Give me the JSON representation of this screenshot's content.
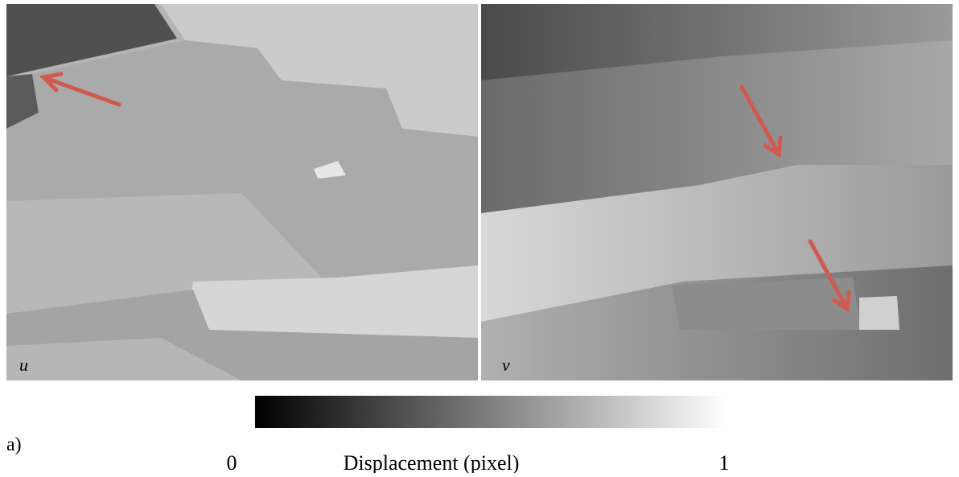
{
  "panels": [
    {
      "label": "u"
    },
    {
      "label": "v"
    }
  ],
  "figure_label": "a)",
  "colorbar": {
    "min": 0,
    "max": 1,
    "label": "Displacement (pixel)"
  }
}
